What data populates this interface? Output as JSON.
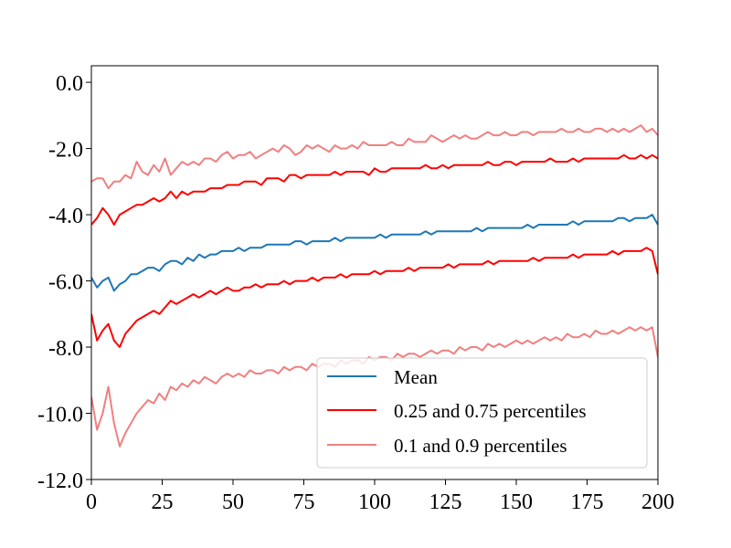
{
  "chart_data": {
    "type": "line",
    "title": "",
    "xlabel": "",
    "ylabel": "",
    "xlim": [
      0,
      200
    ],
    "ylim": [
      -12.0,
      0.5
    ],
    "x_ticks": [
      0,
      25,
      50,
      75,
      100,
      125,
      150,
      175,
      200
    ],
    "x_tick_labels": [
      "0",
      "25",
      "50",
      "75",
      "100",
      "125",
      "150",
      "175",
      "200"
    ],
    "y_ticks": [
      0.0,
      -2.0,
      -4.0,
      -6.0,
      -8.0,
      -10.0,
      -12.0
    ],
    "y_tick_labels": [
      "0.0",
      "-2.0",
      "-4.0",
      "-6.0",
      "-8.0",
      "-10.0",
      "-12.0"
    ],
    "grid": false,
    "legend_location": "lower-right",
    "x_start": 0,
    "x_step": 2,
    "series": [
      {
        "name": "p90",
        "color": "#f08080",
        "values": [
          -3.0,
          -2.9,
          -2.9,
          -3.2,
          -3.0,
          -3.0,
          -2.8,
          -2.9,
          -2.4,
          -2.7,
          -2.8,
          -2.5,
          -2.7,
          -2.3,
          -2.8,
          -2.6,
          -2.4,
          -2.5,
          -2.4,
          -2.5,
          -2.3,
          -2.3,
          -2.4,
          -2.2,
          -2.1,
          -2.3,
          -2.2,
          -2.2,
          -2.1,
          -2.3,
          -2.2,
          -2.1,
          -2.0,
          -2.1,
          -1.9,
          -2.0,
          -2.2,
          -2.1,
          -1.9,
          -2.0,
          -1.9,
          -2.0,
          -2.1,
          -1.9,
          -2.0,
          -2.0,
          -1.9,
          -2.0,
          -1.8,
          -1.9,
          -1.9,
          -1.9,
          -1.9,
          -1.8,
          -1.9,
          -1.9,
          -1.7,
          -1.8,
          -1.8,
          -1.8,
          -1.6,
          -1.7,
          -1.8,
          -1.7,
          -1.6,
          -1.7,
          -1.6,
          -1.7,
          -1.7,
          -1.6,
          -1.5,
          -1.6,
          -1.6,
          -1.5,
          -1.6,
          -1.6,
          -1.5,
          -1.5,
          -1.6,
          -1.5,
          -1.5,
          -1.5,
          -1.5,
          -1.4,
          -1.5,
          -1.5,
          -1.4,
          -1.5,
          -1.5,
          -1.4,
          -1.4,
          -1.5,
          -1.4,
          -1.5,
          -1.4,
          -1.5,
          -1.4,
          -1.3,
          -1.5,
          -1.4,
          -1.6
        ]
      },
      {
        "name": "0.25 and 0.75 percentiles",
        "color": "#ff0000",
        "values": [
          -4.3,
          -4.1,
          -3.8,
          -4.0,
          -4.3,
          -4.0,
          -3.9,
          -3.8,
          -3.7,
          -3.7,
          -3.6,
          -3.5,
          -3.6,
          -3.5,
          -3.3,
          -3.5,
          -3.3,
          -3.4,
          -3.3,
          -3.3,
          -3.3,
          -3.2,
          -3.2,
          -3.2,
          -3.1,
          -3.1,
          -3.1,
          -3.0,
          -3.0,
          -3.0,
          -3.1,
          -2.9,
          -2.9,
          -2.9,
          -3.0,
          -2.8,
          -2.8,
          -2.9,
          -2.8,
          -2.8,
          -2.8,
          -2.8,
          -2.8,
          -2.7,
          -2.8,
          -2.7,
          -2.7,
          -2.7,
          -2.7,
          -2.8,
          -2.6,
          -2.7,
          -2.7,
          -2.6,
          -2.6,
          -2.6,
          -2.6,
          -2.6,
          -2.6,
          -2.5,
          -2.6,
          -2.6,
          -2.5,
          -2.6,
          -2.5,
          -2.5,
          -2.5,
          -2.5,
          -2.5,
          -2.5,
          -2.4,
          -2.5,
          -2.5,
          -2.4,
          -2.4,
          -2.5,
          -2.4,
          -2.4,
          -2.4,
          -2.4,
          -2.4,
          -2.3,
          -2.4,
          -2.4,
          -2.4,
          -2.3,
          -2.4,
          -2.3,
          -2.3,
          -2.3,
          -2.3,
          -2.3,
          -2.3,
          -2.3,
          -2.2,
          -2.3,
          -2.3,
          -2.2,
          -2.3,
          -2.2,
          -2.3
        ]
      },
      {
        "name": "Mean",
        "color": "#1f77b4",
        "values": [
          -5.9,
          -6.2,
          -6.0,
          -5.9,
          -6.3,
          -6.1,
          -6.0,
          -5.8,
          -5.8,
          -5.7,
          -5.6,
          -5.6,
          -5.7,
          -5.5,
          -5.4,
          -5.4,
          -5.5,
          -5.3,
          -5.4,
          -5.2,
          -5.3,
          -5.2,
          -5.2,
          -5.1,
          -5.1,
          -5.1,
          -5.0,
          -5.1,
          -5.0,
          -5.0,
          -5.0,
          -4.9,
          -4.9,
          -4.9,
          -4.9,
          -4.9,
          -4.8,
          -4.8,
          -4.9,
          -4.8,
          -4.8,
          -4.8,
          -4.8,
          -4.7,
          -4.8,
          -4.7,
          -4.7,
          -4.7,
          -4.7,
          -4.7,
          -4.7,
          -4.6,
          -4.7,
          -4.6,
          -4.6,
          -4.6,
          -4.6,
          -4.6,
          -4.6,
          -4.5,
          -4.6,
          -4.5,
          -4.5,
          -4.5,
          -4.5,
          -4.5,
          -4.5,
          -4.5,
          -4.4,
          -4.5,
          -4.4,
          -4.4,
          -4.4,
          -4.4,
          -4.4,
          -4.4,
          -4.4,
          -4.3,
          -4.4,
          -4.3,
          -4.3,
          -4.3,
          -4.3,
          -4.3,
          -4.3,
          -4.2,
          -4.3,
          -4.2,
          -4.2,
          -4.2,
          -4.2,
          -4.2,
          -4.2,
          -4.1,
          -4.1,
          -4.2,
          -4.1,
          -4.1,
          -4.1,
          -4.0,
          -4.3
        ]
      },
      {
        "name": "p25",
        "color": "#ff0000",
        "values": [
          -7.0,
          -7.8,
          -7.5,
          -7.3,
          -7.8,
          -8.0,
          -7.6,
          -7.4,
          -7.2,
          -7.1,
          -7.0,
          -6.9,
          -7.0,
          -6.8,
          -6.6,
          -6.7,
          -6.6,
          -6.5,
          -6.4,
          -6.5,
          -6.4,
          -6.3,
          -6.4,
          -6.3,
          -6.2,
          -6.3,
          -6.3,
          -6.2,
          -6.2,
          -6.1,
          -6.2,
          -6.1,
          -6.1,
          -6.1,
          -6.0,
          -6.1,
          -6.0,
          -6.0,
          -6.0,
          -5.9,
          -6.0,
          -5.9,
          -5.9,
          -5.9,
          -5.8,
          -5.9,
          -5.8,
          -5.8,
          -5.8,
          -5.8,
          -5.7,
          -5.8,
          -5.7,
          -5.7,
          -5.7,
          -5.7,
          -5.6,
          -5.7,
          -5.6,
          -5.6,
          -5.6,
          -5.6,
          -5.6,
          -5.5,
          -5.6,
          -5.5,
          -5.5,
          -5.5,
          -5.5,
          -5.5,
          -5.4,
          -5.5,
          -5.4,
          -5.4,
          -5.4,
          -5.4,
          -5.4,
          -5.4,
          -5.3,
          -5.4,
          -5.3,
          -5.3,
          -5.3,
          -5.3,
          -5.3,
          -5.2,
          -5.3,
          -5.2,
          -5.2,
          -5.2,
          -5.2,
          -5.2,
          -5.1,
          -5.2,
          -5.1,
          -5.1,
          -5.1,
          -5.1,
          -5.0,
          -5.1,
          -5.8
        ]
      },
      {
        "name": "p10",
        "color": "#f08080",
        "values": [
          -9.5,
          -10.5,
          -10.0,
          -9.2,
          -10.3,
          -11.0,
          -10.6,
          -10.3,
          -10.0,
          -9.8,
          -9.6,
          -9.7,
          -9.4,
          -9.6,
          -9.2,
          -9.3,
          -9.1,
          -9.2,
          -9.0,
          -9.1,
          -8.9,
          -9.0,
          -9.1,
          -8.9,
          -8.8,
          -8.9,
          -8.8,
          -8.9,
          -8.7,
          -8.8,
          -8.8,
          -8.7,
          -8.7,
          -8.8,
          -8.6,
          -8.7,
          -8.6,
          -8.6,
          -8.7,
          -8.5,
          -8.6,
          -8.5,
          -8.5,
          -8.6,
          -8.4,
          -8.5,
          -8.4,
          -8.4,
          -8.5,
          -8.3,
          -8.4,
          -8.3,
          -8.3,
          -8.4,
          -8.2,
          -8.3,
          -8.2,
          -8.2,
          -8.3,
          -8.2,
          -8.1,
          -8.2,
          -8.1,
          -8.1,
          -8.2,
          -8.0,
          -8.1,
          -8.0,
          -8.0,
          -8.1,
          -7.9,
          -8.0,
          -7.9,
          -8.0,
          -7.9,
          -7.8,
          -7.9,
          -7.8,
          -7.9,
          -7.8,
          -7.7,
          -7.8,
          -7.7,
          -7.8,
          -7.6,
          -7.7,
          -7.7,
          -7.6,
          -7.7,
          -7.5,
          -7.6,
          -7.6,
          -7.5,
          -7.6,
          -7.5,
          -7.4,
          -7.5,
          -7.4,
          -7.5,
          -7.4,
          -8.3
        ]
      }
    ],
    "legend": [
      {
        "label": "Mean",
        "color": "#1f77b4"
      },
      {
        "label": "0.25 and 0.75 percentiles",
        "color": "#ff0000"
      },
      {
        "label": "0.1 and 0.9 percentiles",
        "color": "#f08080"
      }
    ]
  }
}
